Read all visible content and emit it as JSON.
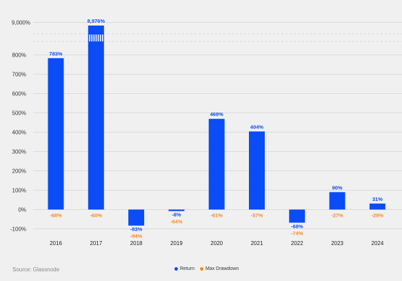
{
  "chart_data": {
    "type": "bar",
    "categories": [
      "2016",
      "2017",
      "2018",
      "2019",
      "2020",
      "2021",
      "2022",
      "2023",
      "2024"
    ],
    "series": [
      {
        "name": "Return",
        "values": [
          783,
          8976,
          -83,
          -8,
          469,
          404,
          -68,
          90,
          31
        ],
        "labels": [
          "783%",
          "8,976%",
          "-83%",
          "-8%",
          "469%",
          "404%",
          "-68%",
          "90%",
          "31%"
        ]
      },
      {
        "name": "Max Drawdown",
        "values": [
          -68,
          -60,
          -94,
          -64,
          -61,
          -57,
          -74,
          -27,
          -29
        ],
        "labels": [
          "-68%",
          "-60%",
          "-94%",
          "-64%",
          "-61%",
          "-57%",
          "-74%",
          "-27%",
          "-29%"
        ]
      }
    ],
    "yticks": [
      "-100%",
      "0%",
      "100%",
      "200%",
      "300%",
      "400%",
      "500%",
      "600%",
      "700%",
      "800%"
    ],
    "ybreak_tick": "9,000%",
    "ylim": [
      -100,
      800
    ],
    "axis_break": true,
    "grid": true,
    "legend_position": "bottom-center"
  },
  "colors": {
    "return": "#0a4cf5",
    "drawdown": "#f7891f",
    "grid": "#d4d4d4",
    "background": "#f1f0f0"
  },
  "source": "Source: Glassnode"
}
